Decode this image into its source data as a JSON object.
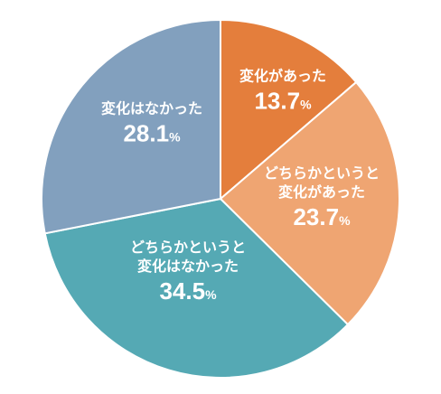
{
  "chart_data": {
    "type": "pie",
    "start_angle_deg": 0,
    "direction": "clockwise",
    "slices": [
      {
        "label": [
          "変化があった"
        ],
        "value": 13.7,
        "value_text": "13.7",
        "unit": "%",
        "color": "#E47E3C"
      },
      {
        "label": [
          "どちらかというと",
          "変化があった"
        ],
        "value": 23.7,
        "value_text": "23.7",
        "unit": "%",
        "color": "#EFA572"
      },
      {
        "label": [
          "どちらかというと",
          "変化はなかった"
        ],
        "value": 34.5,
        "value_text": "34.5",
        "unit": "%",
        "color": "#55A9B4"
      },
      {
        "label": [
          "変化はなかった"
        ],
        "value": 28.1,
        "value_text": "28.1",
        "unit": "%",
        "color": "#82A0BE"
      }
    ]
  }
}
